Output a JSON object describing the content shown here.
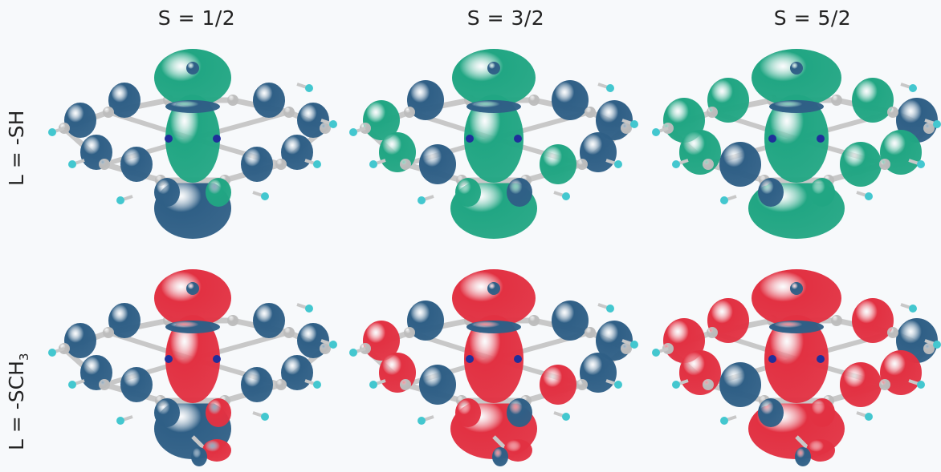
{
  "column_headers": [
    "S = 1/2",
    "S = 3/2",
    "S = 5/2"
  ],
  "row_labels": [
    {
      "main": "L = -SH",
      "sub": ""
    },
    {
      "main": "L = -SCH",
      "sub": "3"
    }
  ],
  "colors": {
    "lobe_blue": "#2f5f86",
    "lobe_green": "#21a683",
    "lobe_red": "#e23142",
    "bond_gray": "#c8c8c8",
    "hydrogen_cyan": "#43c7cf",
    "nitrogen_navy": "#1f2f9a",
    "background": "#f7f9fb"
  },
  "panels": [
    {
      "row": 0,
      "col": 0,
      "spin": "S = 1/2",
      "ligand": "L = -SH",
      "positive_color": "lobe_green",
      "negative_color": "lobe_blue"
    },
    {
      "row": 0,
      "col": 1,
      "spin": "S = 3/2",
      "ligand": "L = -SH",
      "positive_color": "lobe_green",
      "negative_color": "lobe_blue"
    },
    {
      "row": 0,
      "col": 2,
      "spin": "S = 5/2",
      "ligand": "L = -SH",
      "positive_color": "lobe_green",
      "negative_color": "lobe_blue"
    },
    {
      "row": 1,
      "col": 0,
      "spin": "S = 1/2",
      "ligand": "L = -SCH3",
      "positive_color": "lobe_red",
      "negative_color": "lobe_blue"
    },
    {
      "row": 1,
      "col": 1,
      "spin": "S = 3/2",
      "ligand": "L = -SCH3",
      "positive_color": "lobe_red",
      "negative_color": "lobe_blue"
    },
    {
      "row": 1,
      "col": 2,
      "spin": "S = 5/2",
      "ligand": "L = -SCH3",
      "positive_color": "lobe_red",
      "negative_color": "lobe_blue"
    }
  ]
}
